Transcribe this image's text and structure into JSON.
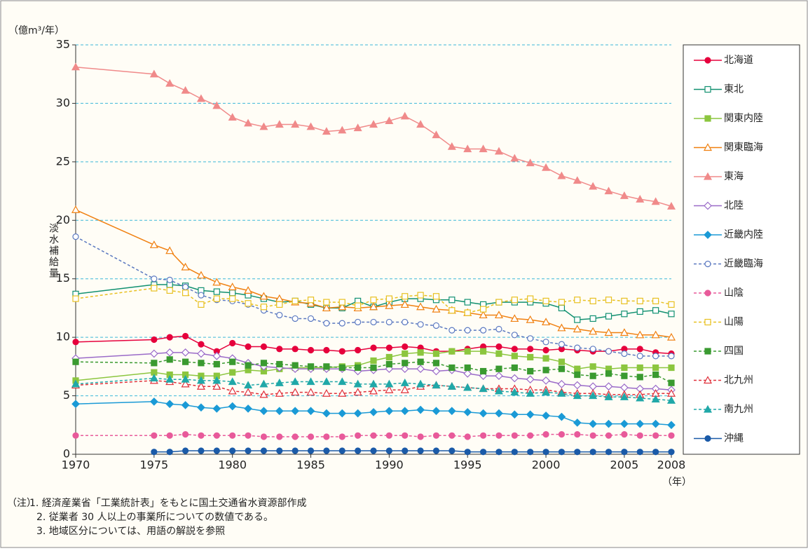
{
  "chart_data": {
    "type": "line",
    "y_unit": "（億m³/年）",
    "y_label": "淡水補給量",
    "x_unit": "（年）",
    "note_label": "（注）",
    "notes": [
      "1. 経済産業省「工業統計表」をもとに国土交通省水資源部作成",
      "2. 従業者 30 人以上の事業所についての数値である。",
      "3. 地域区分については、用語の解説を参照"
    ],
    "x": [
      1970,
      1975,
      1976,
      1977,
      1978,
      1979,
      1980,
      1981,
      1982,
      1983,
      1984,
      1985,
      1986,
      1987,
      1988,
      1989,
      1990,
      1991,
      1992,
      1993,
      1994,
      1995,
      1996,
      1997,
      1998,
      1999,
      2000,
      2001,
      2002,
      2003,
      2004,
      2005,
      2006,
      2007,
      2008
    ],
    "xlim": [
      1970,
      2008
    ],
    "xticks": [
      1970,
      1975,
      1980,
      1985,
      1990,
      1995,
      2000,
      2005,
      2008
    ],
    "ylim": [
      0,
      35
    ],
    "yticks": [
      0,
      5,
      10,
      15,
      20,
      25,
      30,
      35
    ],
    "grid": true,
    "series": [
      {
        "name": "北海道",
        "color": "#e6003c",
        "marker": "circle",
        "filled": true,
        "dashed": false,
        "values": [
          9.6,
          9.8,
          10.0,
          10.1,
          9.4,
          8.8,
          9.5,
          9.2,
          9.2,
          9.0,
          9.0,
          8.9,
          8.9,
          8.8,
          8.9,
          9.1,
          9.1,
          9.2,
          9.1,
          8.8,
          8.8,
          9.0,
          9.2,
          9.2,
          9.0,
          9.0,
          8.9,
          9.0,
          8.9,
          8.8,
          8.8,
          9.0,
          9.0,
          8.7,
          8.6
        ]
      },
      {
        "name": "東北",
        "color": "#109070",
        "marker": "square",
        "filled": false,
        "dashed": false,
        "values": [
          13.7,
          14.5,
          14.5,
          14.4,
          14.0,
          13.9,
          13.8,
          13.6,
          13.3,
          13.0,
          13.1,
          12.8,
          12.5,
          12.5,
          13.1,
          12.6,
          13.0,
          13.3,
          13.3,
          13.2,
          13.2,
          13.0,
          12.8,
          13.0,
          13.0,
          13.0,
          12.9,
          12.5,
          11.5,
          11.6,
          11.8,
          12.0,
          12.2,
          12.3,
          12.0
        ]
      },
      {
        "name": "関東内陸",
        "color": "#8cc63f",
        "marker": "square",
        "filled": true,
        "dashed": false,
        "values": [
          6.3,
          7.0,
          6.8,
          6.8,
          6.7,
          6.7,
          7.0,
          7.2,
          7.1,
          7.3,
          7.4,
          7.4,
          7.4,
          7.5,
          7.6,
          8.0,
          8.3,
          8.6,
          8.7,
          8.6,
          8.8,
          8.8,
          8.8,
          8.6,
          8.4,
          8.3,
          8.2,
          7.9,
          7.3,
          7.5,
          7.3,
          7.4,
          7.4,
          7.4,
          7.4
        ]
      },
      {
        "name": "関東臨海",
        "color": "#f08010",
        "marker": "triangle",
        "filled": false,
        "dashed": false,
        "values": [
          20.9,
          17.9,
          17.4,
          16.0,
          15.3,
          14.7,
          14.3,
          14.0,
          13.5,
          13.3,
          13.0,
          12.9,
          12.5,
          12.6,
          12.5,
          12.6,
          12.7,
          12.8,
          12.6,
          12.4,
          12.3,
          12.1,
          11.9,
          11.9,
          11.6,
          11.5,
          11.3,
          10.8,
          10.7,
          10.5,
          10.4,
          10.4,
          10.2,
          10.2,
          10.0
        ]
      },
      {
        "name": "東海",
        "color": "#f08a8a",
        "marker": "triangle",
        "filled": true,
        "dashed": false,
        "values": [
          33.1,
          32.5,
          31.7,
          31.1,
          30.4,
          29.8,
          28.8,
          28.3,
          28.0,
          28.2,
          28.2,
          28.0,
          27.6,
          27.7,
          27.9,
          28.2,
          28.5,
          28.9,
          28.2,
          27.3,
          26.3,
          26.1,
          26.1,
          25.9,
          25.3,
          24.9,
          24.5,
          23.8,
          23.4,
          22.9,
          22.5,
          22.1,
          21.8,
          21.6,
          21.2
        ]
      },
      {
        "name": "北陸",
        "color": "#9a6ac8",
        "marker": "diamond",
        "filled": false,
        "dashed": false,
        "values": [
          8.2,
          8.6,
          8.7,
          8.7,
          8.6,
          8.4,
          8.2,
          7.8,
          7.5,
          7.4,
          7.3,
          7.3,
          7.3,
          7.3,
          7.1,
          7.2,
          7.3,
          7.3,
          7.3,
          7.1,
          7.2,
          6.9,
          6.7,
          6.7,
          6.5,
          6.4,
          6.3,
          6.0,
          5.9,
          5.8,
          5.8,
          5.7,
          5.6,
          5.6,
          5.5
        ]
      },
      {
        "name": "近畿内陸",
        "color": "#1a9ad6",
        "marker": "diamond",
        "filled": true,
        "dashed": false,
        "values": [
          4.3,
          4.5,
          4.3,
          4.2,
          4.0,
          3.9,
          4.1,
          3.9,
          3.7,
          3.7,
          3.7,
          3.7,
          3.5,
          3.5,
          3.5,
          3.6,
          3.7,
          3.7,
          3.8,
          3.7,
          3.7,
          3.6,
          3.5,
          3.5,
          3.4,
          3.4,
          3.3,
          3.2,
          2.7,
          2.6,
          2.6,
          2.6,
          2.6,
          2.6,
          2.5
        ]
      },
      {
        "name": "近畿臨海",
        "color": "#5a78c0",
        "marker": "circle",
        "filled": false,
        "dashed": true,
        "values": [
          18.6,
          15.0,
          14.9,
          14.3,
          13.6,
          13.2,
          13.1,
          12.8,
          12.3,
          11.9,
          11.6,
          11.6,
          11.2,
          11.2,
          11.3,
          11.3,
          11.3,
          11.3,
          11.1,
          11.0,
          10.6,
          10.6,
          10.6,
          10.7,
          10.2,
          9.9,
          9.6,
          9.4,
          9.1,
          9.0,
          8.8,
          8.6,
          8.4,
          8.4,
          8.4
        ]
      },
      {
        "name": "山陰",
        "color": "#e85a9a",
        "marker": "circle",
        "filled": true,
        "dashed": true,
        "values": [
          1.6,
          1.6,
          1.6,
          1.7,
          1.6,
          1.6,
          1.6,
          1.6,
          1.5,
          1.5,
          1.5,
          1.5,
          1.5,
          1.5,
          1.6,
          1.6,
          1.6,
          1.6,
          1.5,
          1.6,
          1.6,
          1.5,
          1.6,
          1.6,
          1.6,
          1.6,
          1.7,
          1.7,
          1.7,
          1.6,
          1.6,
          1.7,
          1.6,
          1.6,
          1.6
        ]
      },
      {
        "name": "山陽",
        "color": "#e8c020",
        "marker": "square",
        "filled": false,
        "dashed": true,
        "values": [
          13.3,
          14.2,
          14.0,
          13.8,
          12.8,
          13.3,
          13.3,
          12.9,
          12.6,
          12.8,
          13.1,
          13.2,
          13.0,
          13.0,
          12.7,
          13.2,
          13.3,
          13.5,
          13.6,
          13.5,
          12.3,
          12.1,
          12.4,
          13.0,
          13.2,
          13.3,
          13.1,
          13.0,
          13.2,
          13.1,
          13.2,
          13.1,
          13.1,
          13.1,
          12.8
        ]
      },
      {
        "name": "四国",
        "color": "#3a9a30",
        "marker": "square",
        "filled": true,
        "dashed": true,
        "values": [
          7.9,
          7.8,
          8.1,
          7.9,
          7.8,
          7.7,
          7.9,
          7.6,
          7.8,
          7.7,
          7.6,
          7.5,
          7.5,
          7.4,
          7.4,
          7.4,
          7.7,
          7.8,
          7.9,
          7.8,
          7.4,
          7.4,
          7.1,
          7.3,
          7.4,
          7.1,
          7.2,
          7.3,
          6.8,
          6.7,
          6.9,
          6.7,
          6.6,
          6.8,
          6.1
        ]
      },
      {
        "name": "北九州",
        "color": "#e0303a",
        "marker": "triangle",
        "filled": false,
        "dashed": true,
        "values": [
          5.9,
          6.3,
          6.2,
          6.0,
          5.8,
          5.8,
          5.4,
          5.3,
          5.1,
          5.2,
          5.3,
          5.3,
          5.2,
          5.2,
          5.3,
          5.4,
          5.5,
          5.5,
          5.8,
          5.9,
          5.8,
          5.7,
          5.6,
          5.6,
          5.6,
          5.5,
          5.5,
          5.3,
          5.2,
          5.2,
          5.1,
          5.1,
          5.1,
          5.2,
          5.2
        ]
      },
      {
        "name": "南九州",
        "color": "#20a8a8",
        "marker": "triangle",
        "filled": true,
        "dashed": true,
        "values": [
          6.0,
          6.5,
          6.4,
          6.4,
          6.3,
          6.3,
          6.2,
          5.9,
          6.0,
          6.1,
          6.2,
          6.2,
          6.2,
          6.2,
          6.0,
          6.0,
          6.0,
          6.1,
          6.0,
          5.9,
          5.8,
          5.7,
          5.6,
          5.4,
          5.3,
          5.2,
          5.3,
          5.2,
          5.0,
          5.0,
          4.9,
          4.9,
          4.8,
          4.7,
          4.6
        ]
      },
      {
        "name": "沖縄",
        "color": "#1a5aa8",
        "marker": "circle",
        "filled": true,
        "dashed": false,
        "values": [
          null,
          0.2,
          0.2,
          0.3,
          0.3,
          0.3,
          0.3,
          0.3,
          0.3,
          0.3,
          0.3,
          0.3,
          0.3,
          0.3,
          0.3,
          0.3,
          0.3,
          0.3,
          0.3,
          0.3,
          0.3,
          0.2,
          0.2,
          0.2,
          0.2,
          0.2,
          0.2,
          0.2,
          0.2,
          0.2,
          0.2,
          0.2,
          0.2,
          0.2,
          0.2
        ]
      }
    ]
  }
}
